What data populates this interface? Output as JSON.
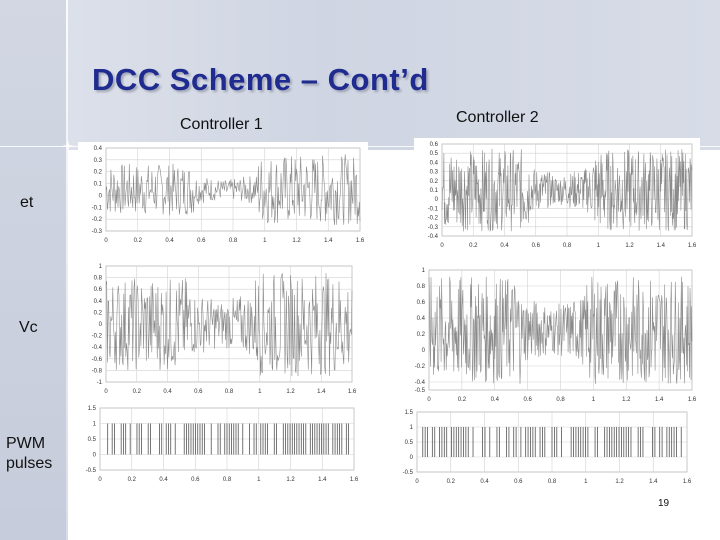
{
  "slide": {
    "title": "DCC Scheme – Cont’d",
    "page_number": "19"
  },
  "columns": [
    "Controller 1",
    "Controller 2"
  ],
  "rows": [
    "et",
    "Vc",
    "PWM pulses"
  ],
  "row_labels": {
    "pwm_line1": "PWM",
    "pwm_line2": "pulses"
  },
  "colors": {
    "title": "#1f2b8f",
    "trace": "#8a8a8a",
    "grid": "#d2d2d2"
  },
  "chart_data": [
    {
      "type": "line",
      "row": "et",
      "column": "Controller 1",
      "xlim": [
        0,
        1.6
      ],
      "ylim": [
        -0.3,
        0.4
      ],
      "x_ticks": [
        "0",
        "0.2",
        "0.4",
        "0.6",
        "0.8",
        "1",
        "1.2",
        "1.4",
        "1.6"
      ],
      "y_ticks": [
        "0.4",
        "0.3",
        "0.2",
        "0.1",
        "0",
        "-0.1",
        "-0.2",
        "-0.3"
      ]
    },
    {
      "type": "line",
      "row": "et",
      "column": "Controller 2",
      "xlim": [
        0,
        1.6
      ],
      "ylim": [
        -0.4,
        0.6
      ],
      "x_ticks": [
        "0",
        "0.2",
        "0.4",
        "0.6",
        "0.8",
        "1",
        "1.2",
        "1.4",
        "1.6"
      ],
      "y_ticks": [
        "0.6",
        "0.5",
        "0.4",
        "0.3",
        "0.2",
        "0.1",
        "0",
        "-0.1",
        "-0.2",
        "-0.3",
        "-0.4"
      ]
    },
    {
      "type": "line",
      "row": "Vc",
      "column": "Controller 1",
      "xlim": [
        0,
        1.6
      ],
      "ylim": [
        -1,
        1
      ],
      "x_ticks": [
        "0",
        "0.2",
        "0.4",
        "0.6",
        "0.8",
        "1",
        "1.2",
        "1.4",
        "1.6"
      ],
      "y_ticks": [
        "1",
        "0.8",
        "0.6",
        "0.4",
        "0.2",
        "0",
        "-0.2",
        "-0.4",
        "-0.6",
        "-0.8",
        "-1"
      ]
    },
    {
      "type": "line",
      "row": "Vc",
      "column": "Controller 2",
      "xlim": [
        0,
        1.6
      ],
      "ylim": [
        -0.5,
        1
      ],
      "x_ticks": [
        "0",
        "0.2",
        "0.4",
        "0.6",
        "0.8",
        "1",
        "1.2",
        "1.4",
        "1.6"
      ],
      "y_ticks": [
        "1",
        "0.8",
        "0.6",
        "0.4",
        "0.2",
        "0",
        "-0.2",
        "-0.4",
        "-0.5"
      ]
    },
    {
      "type": "line",
      "row": "PWM pulses",
      "column": "Controller 1",
      "xlim": [
        0,
        1.6
      ],
      "ylim": [
        -0.5,
        1.5
      ],
      "x_ticks": [
        "0",
        "0.2",
        "0.4",
        "0.6",
        "0.8",
        "1",
        "1.2",
        "1.4",
        "1.6"
      ],
      "y_ticks": [
        "1.5",
        "1",
        "0.5",
        "0",
        "-0.5"
      ]
    },
    {
      "type": "line",
      "row": "PWM pulses",
      "column": "Controller 2",
      "xlim": [
        0,
        1.6
      ],
      "ylim": [
        -0.5,
        1.5
      ],
      "x_ticks": [
        "0",
        "0.2",
        "0.4",
        "0.6",
        "0.8",
        "1",
        "1.2",
        "1.4",
        "1.6"
      ],
      "y_ticks": [
        "1.5",
        "1",
        "0.5",
        "0",
        "-0.5"
      ]
    }
  ]
}
